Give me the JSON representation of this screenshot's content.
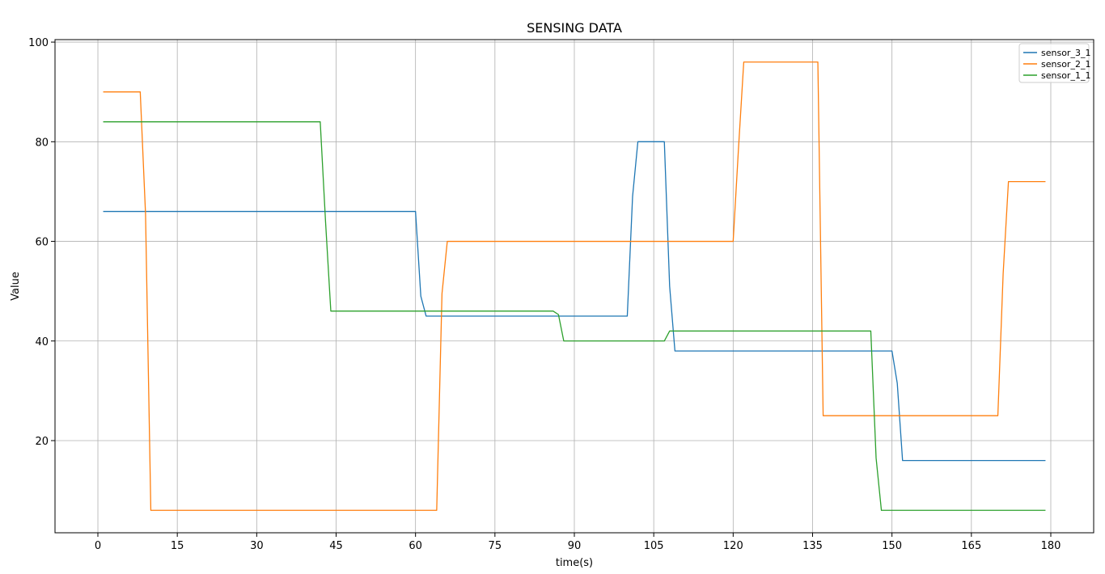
{
  "chart_data": {
    "type": "line",
    "title": "SENSING DATA",
    "xlabel": "time(s)",
    "ylabel": "Value",
    "xlim": [
      -8.1,
      188.1
    ],
    "ylim": [
      1.5,
      100.5
    ],
    "xticks": [
      0,
      15,
      30,
      45,
      60,
      75,
      90,
      105,
      120,
      135,
      150,
      165,
      180
    ],
    "yticks": [
      20,
      40,
      60,
      80,
      100
    ],
    "grid": true,
    "legend_position": "top-right",
    "series": [
      {
        "name": "sensor_3_1",
        "color": "#1f77b4",
        "points": [
          [
            1,
            66
          ],
          [
            60,
            66
          ],
          [
            61,
            49
          ],
          [
            62,
            45
          ],
          [
            100,
            45
          ],
          [
            101,
            69
          ],
          [
            102,
            80
          ],
          [
            107,
            80
          ],
          [
            108,
            51
          ],
          [
            109,
            38
          ],
          [
            150,
            38
          ],
          [
            151,
            31.5
          ],
          [
            152,
            16
          ],
          [
            179,
            16
          ]
        ]
      },
      {
        "name": "sensor_2_1",
        "color": "#ff7f0e",
        "points": [
          [
            1,
            90
          ],
          [
            8,
            90
          ],
          [
            9,
            65.5
          ],
          [
            10,
            6
          ],
          [
            64,
            6
          ],
          [
            65,
            49.5
          ],
          [
            66,
            60
          ],
          [
            120,
            60
          ],
          [
            121,
            78.5
          ],
          [
            122,
            96
          ],
          [
            136,
            96
          ],
          [
            137,
            25
          ],
          [
            170,
            25
          ],
          [
            171,
            53.5
          ],
          [
            172,
            72
          ],
          [
            179,
            72
          ]
        ]
      },
      {
        "name": "sensor_1_1",
        "color": "#2ca02c",
        "points": [
          [
            1,
            84
          ],
          [
            42,
            84
          ],
          [
            43,
            64
          ],
          [
            44,
            46
          ],
          [
            86,
            46
          ],
          [
            87,
            45.3
          ],
          [
            88,
            40
          ],
          [
            107,
            40
          ],
          [
            108,
            42
          ],
          [
            146,
            42
          ],
          [
            147,
            16.5
          ],
          [
            148,
            6
          ],
          [
            179,
            6
          ]
        ]
      }
    ]
  }
}
